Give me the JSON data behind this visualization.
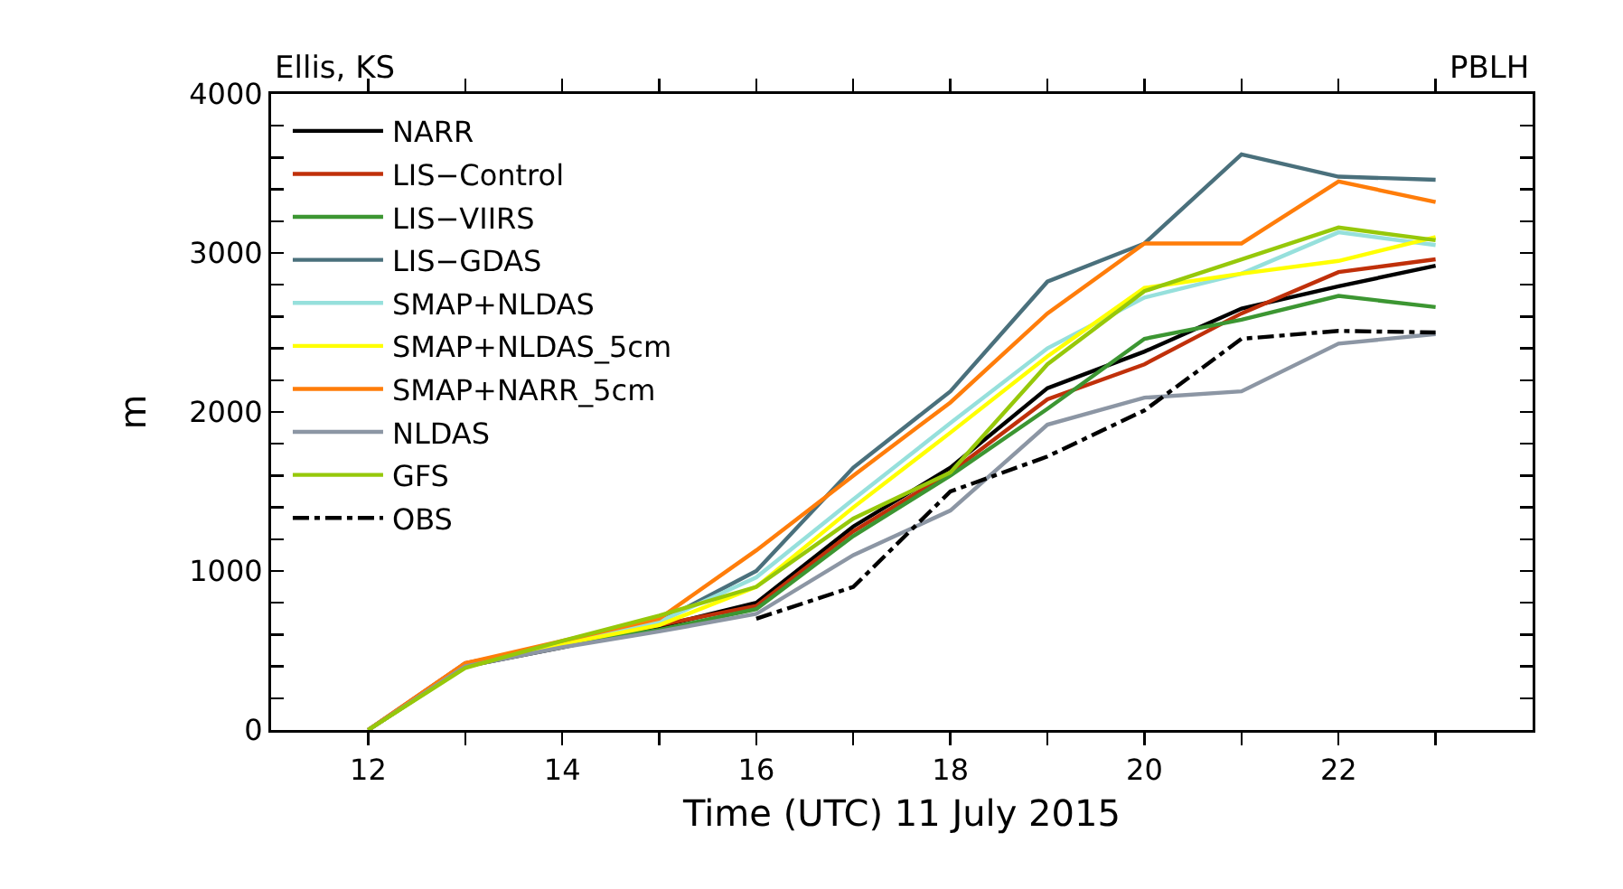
{
  "chart_data": {
    "type": "line",
    "annotations": [
      "Ellis, KS",
      "PBLH"
    ],
    "xlabel": "Time (UTC) 11 July 2015",
    "ylabel": "m",
    "x": [
      12,
      13,
      14,
      15,
      16,
      17,
      18,
      19,
      20,
      21,
      22,
      23
    ],
    "series": [
      {
        "name": "NARR",
        "color": "#000000",
        "values": [
          0,
          400,
          520,
          650,
          800,
          1280,
          1650,
          2150,
          2380,
          2650,
          2790,
          2920
        ]
      },
      {
        "name": "LIS−Control",
        "color": "#c0300a",
        "values": [
          0,
          420,
          540,
          660,
          780,
          1250,
          1620,
          2080,
          2300,
          2620,
          2880,
          2960
        ]
      },
      {
        "name": "LIS−VIIRS",
        "color": "#3c9632",
        "values": [
          0,
          400,
          540,
          630,
          760,
          1220,
          1600,
          2020,
          2460,
          2580,
          2730,
          2660
        ]
      },
      {
        "name": "LIS−GDAS",
        "color": "#4a707c",
        "values": [
          0,
          400,
          540,
          680,
          1000,
          1650,
          2130,
          2820,
          3060,
          3620,
          3480,
          3460
        ]
      },
      {
        "name": "SMAP+NLDAS",
        "color": "#96e0dc",
        "values": [
          0,
          400,
          540,
          680,
          960,
          1450,
          1930,
          2400,
          2720,
          2870,
          3130,
          3050
        ]
      },
      {
        "name": "SMAP+NLDAS_5cm",
        "color": "#ffff00",
        "values": [
          0,
          400,
          540,
          660,
          900,
          1400,
          1870,
          2350,
          2780,
          2870,
          2950,
          3100
        ]
      },
      {
        "name": "SMAP+NARR_5cm",
        "color": "#ff7d0a",
        "values": [
          0,
          420,
          560,
          700,
          1130,
          1600,
          2060,
          2620,
          3060,
          3060,
          3450,
          3320
        ]
      },
      {
        "name": "NLDAS",
        "color": "#8c96a4",
        "values": [
          0,
          400,
          520,
          620,
          730,
          1100,
          1380,
          1920,
          2090,
          2130,
          2430,
          2490
        ]
      },
      {
        "name": "GFS",
        "color": "#96c80a",
        "values": [
          0,
          390,
          560,
          720,
          900,
          1330,
          1620,
          2300,
          2760,
          2960,
          3160,
          3080
        ]
      },
      {
        "name": "OBS",
        "color": "#000000",
        "line_style": "dashed",
        "values": [
          null,
          null,
          null,
          null,
          700,
          900,
          1500,
          1720,
          2010,
          2460,
          2510,
          2500
        ]
      }
    ],
    "xlim": [
      11,
      24
    ],
    "xticks": [
      12,
      {
        "value": 13,
        "label": null
      },
      14,
      {
        "value": 15,
        "label": null
      },
      16,
      {
        "value": 17,
        "label": null
      },
      18,
      {
        "value": 19,
        "label": null
      },
      20,
      {
        "value": 21,
        "label": null
      },
      22,
      {
        "value": 23,
        "label": null
      }
    ],
    "ylim": [
      0,
      4000
    ],
    "yticks": [
      0,
      {
        "value": 200,
        "label": null
      },
      {
        "value": 400,
        "label": null
      },
      {
        "value": 600,
        "label": null
      },
      {
        "value": 800,
        "label": null
      },
      1000,
      {
        "value": 1200,
        "label": null
      },
      {
        "value": 1400,
        "label": null
      },
      {
        "value": 1600,
        "label": null
      },
      {
        "value": 1800,
        "label": null
      },
      2000,
      {
        "value": 2200,
        "label": null
      },
      {
        "value": 2400,
        "label": null
      },
      {
        "value": 2600,
        "label": null
      },
      {
        "value": 2800,
        "label": null
      },
      3000,
      {
        "value": 3200,
        "label": null
      },
      {
        "value": 3400,
        "label": null
      },
      {
        "value": 3600,
        "label": null
      },
      {
        "value": 3800,
        "label": null
      },
      4000
    ],
    "grid": false,
    "legend": "top left",
    "marker": "none",
    "line_style": "solid"
  }
}
